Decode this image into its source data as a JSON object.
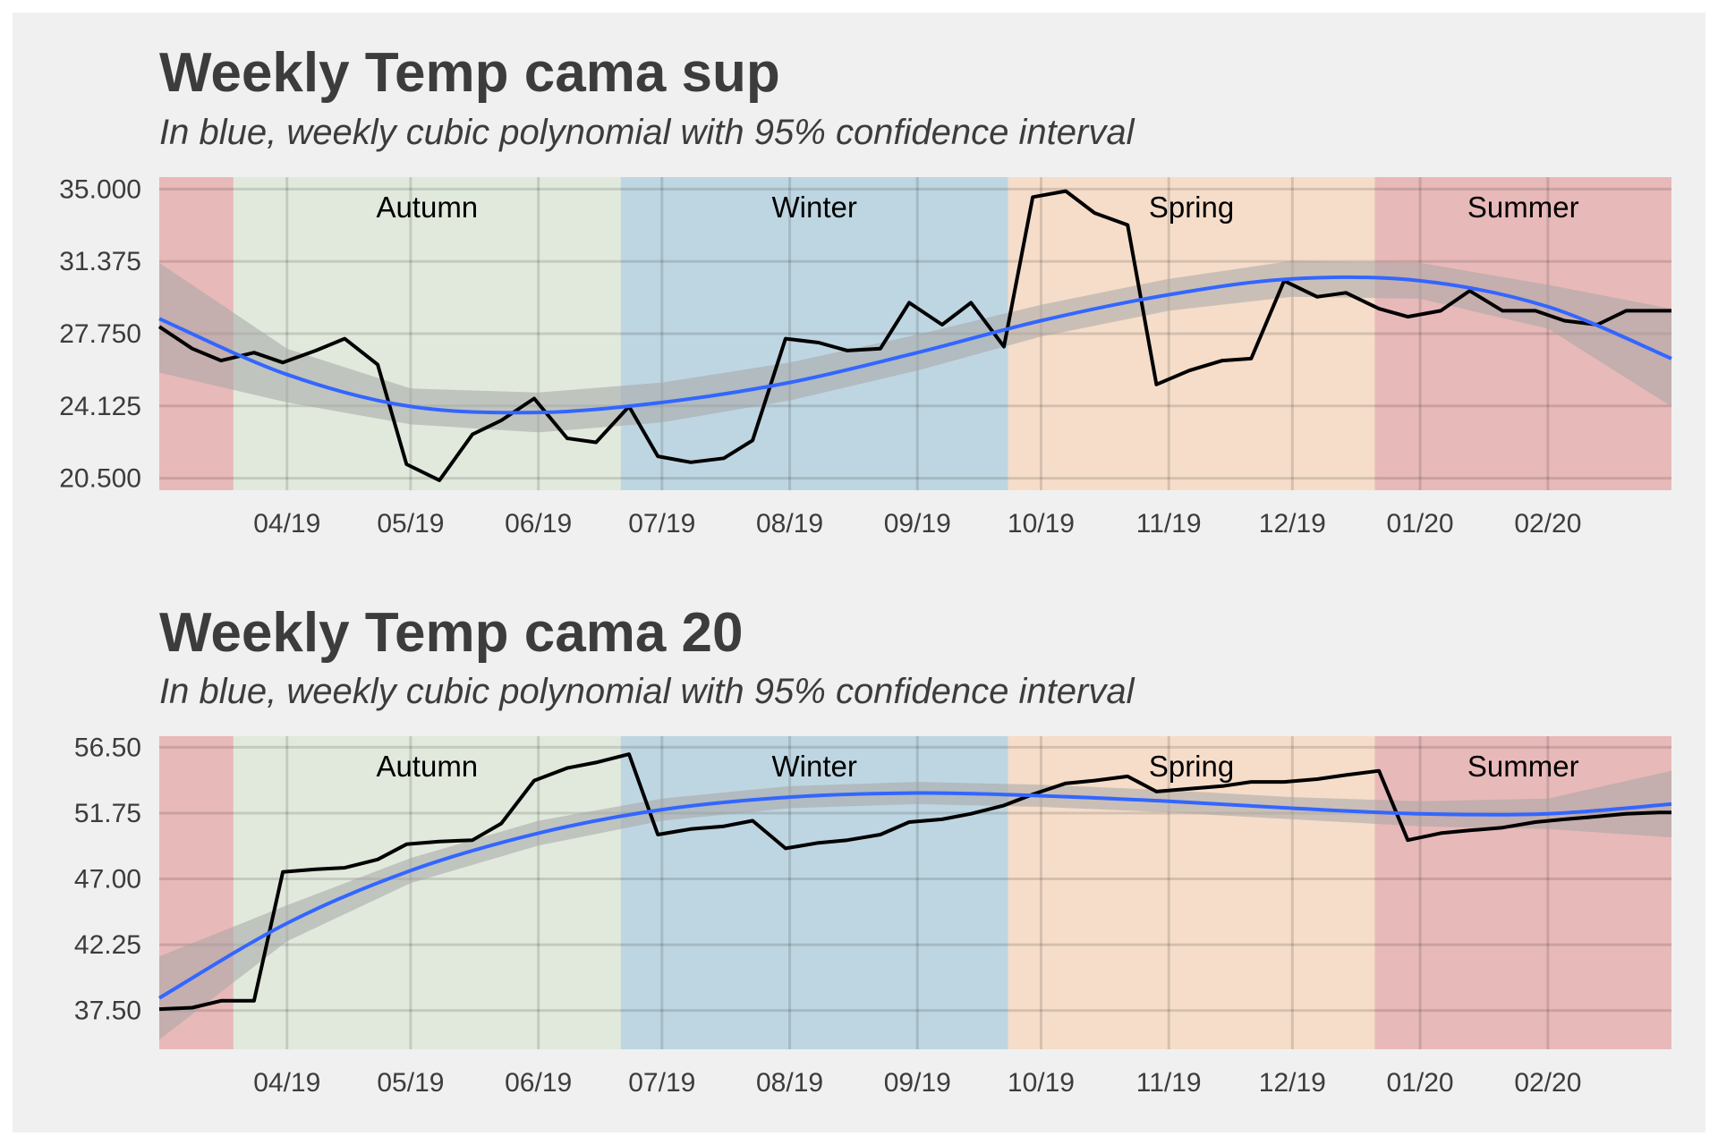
{
  "colors": {
    "background": "#f0f0f0",
    "summer": "#e8b9b9",
    "autumn": "#e1e9dc",
    "winter": "#bed6e1",
    "spring": "#f5ddc9",
    "observed_line": "#000000",
    "fit_line": "#3366ff",
    "confidence_band": "#a6a6a6"
  },
  "chart_data": [
    {
      "type": "line",
      "title": "Weekly Temp cama sup",
      "subtitle": "In blue, weekly cubic polynomial with 95% confidence interval",
      "xlabel": "",
      "ylabel": "",
      "x_range": [
        "2019-03-01",
        "2020-03-02"
      ],
      "ylim": [
        19.9,
        35.6
      ],
      "yticks": [
        20.5,
        24.125,
        27.75,
        31.375,
        35.0
      ],
      "ytick_labels": [
        "20.500",
        "24.125",
        "27.750",
        "31.375",
        "35.000"
      ],
      "xticks": [
        "2019-04-01",
        "2019-05-01",
        "2019-06-01",
        "2019-07-01",
        "2019-08-01",
        "2019-09-01",
        "2019-10-01",
        "2019-11-01",
        "2019-12-01",
        "2020-01-01",
        "2020-02-01"
      ],
      "xtick_labels": [
        "04/19",
        "05/19",
        "06/19",
        "07/19",
        "08/19",
        "09/19",
        "10/19",
        "11/19",
        "12/19",
        "01/20",
        "02/20"
      ],
      "grid": true,
      "seasons": [
        {
          "name": "",
          "key": "summer",
          "start": "2019-03-01",
          "end": "2019-03-19"
        },
        {
          "name": "Autumn",
          "key": "autumn",
          "start": "2019-03-19",
          "end": "2019-06-21"
        },
        {
          "name": "Winter",
          "key": "winter",
          "start": "2019-06-21",
          "end": "2019-09-23"
        },
        {
          "name": "Spring",
          "key": "spring",
          "start": "2019-09-23",
          "end": "2019-12-21"
        },
        {
          "name": "Summer",
          "key": "summer",
          "start": "2019-12-21",
          "end": "2020-03-02"
        }
      ],
      "series": [
        {
          "x": [
            "2019-03-01",
            "2019-03-09",
            "2019-03-16",
            "2019-03-24",
            "2019-03-31",
            "2019-04-08",
            "2019-04-15",
            "2019-04-23",
            "2019-04-30",
            "2019-05-08",
            "2019-05-16",
            "2019-05-23",
            "2019-05-31",
            "2019-06-08",
            "2019-06-15",
            "2019-06-23",
            "2019-06-30",
            "2019-07-08",
            "2019-07-16",
            "2019-07-23",
            "2019-07-31",
            "2019-08-08",
            "2019-08-15",
            "2019-08-23",
            "2019-08-30",
            "2019-09-07",
            "2019-09-14",
            "2019-09-22",
            "2019-09-29",
            "2019-10-07",
            "2019-10-14",
            "2019-10-22",
            "2019-10-29",
            "2019-11-06",
            "2019-11-14",
            "2019-11-21",
            "2019-11-29",
            "2019-12-07",
            "2019-12-14",
            "2019-12-22",
            "2019-12-29",
            "2020-01-06",
            "2020-01-13",
            "2020-01-21",
            "2020-01-29",
            "2020-02-05",
            "2020-02-13",
            "2020-02-20",
            "2020-02-28",
            "2020-03-02"
          ],
          "values": [
            28.1,
            27.0,
            26.4,
            26.8,
            26.3,
            26.9,
            27.5,
            26.2,
            21.2,
            20.4,
            22.7,
            23.4,
            24.5,
            22.5,
            22.3,
            24.1,
            21.6,
            21.3,
            21.5,
            22.4,
            27.5,
            27.3,
            26.9,
            27.0,
            29.3,
            28.2,
            29.3,
            27.1,
            34.6,
            34.9,
            33.8,
            33.2,
            25.2,
            25.9,
            26.4,
            26.5,
            30.4,
            29.6,
            29.8,
            29.0,
            28.6,
            28.9,
            29.9,
            28.9,
            28.9,
            28.4,
            28.2,
            28.9,
            28.9,
            28.9
          ]
        },
        {
          "type": "fit",
          "x": [
            "2019-03-01",
            "2019-04-01",
            "2019-05-01",
            "2019-06-01",
            "2019-07-01",
            "2019-08-01",
            "2019-09-01",
            "2019-10-01",
            "2019-11-01",
            "2019-12-01",
            "2020-01-01",
            "2020-02-01",
            "2020-03-02"
          ],
          "values": [
            28.5,
            25.7,
            24.1,
            23.8,
            24.3,
            25.3,
            26.8,
            28.4,
            29.7,
            30.5,
            30.4,
            29.1,
            26.5
          ],
          "ci_low": [
            25.8,
            24.3,
            23.2,
            22.8,
            23.3,
            24.4,
            25.9,
            27.6,
            28.9,
            29.6,
            29.5,
            28.0,
            24.1
          ],
          "ci_high": [
            31.3,
            27.0,
            25.0,
            24.8,
            25.3,
            26.3,
            27.7,
            29.2,
            30.5,
            31.4,
            31.3,
            30.2,
            29.0
          ]
        }
      ]
    },
    {
      "type": "line",
      "title": "Weekly Temp cama 20",
      "subtitle": "In blue, weekly cubic polynomial with 95% confidence interval",
      "xlabel": "",
      "ylabel": "",
      "x_range": [
        "2019-03-01",
        "2020-03-02"
      ],
      "ylim": [
        34.7,
        57.3
      ],
      "yticks": [
        37.5,
        42.25,
        47.0,
        51.75,
        56.5
      ],
      "ytick_labels": [
        "37.50",
        "42.25",
        "47.00",
        "51.75",
        "56.50"
      ],
      "xticks": [
        "2019-04-01",
        "2019-05-01",
        "2019-06-01",
        "2019-07-01",
        "2019-08-01",
        "2019-09-01",
        "2019-10-01",
        "2019-11-01",
        "2019-12-01",
        "2020-01-01",
        "2020-02-01"
      ],
      "xtick_labels": [
        "04/19",
        "05/19",
        "06/19",
        "07/19",
        "08/19",
        "09/19",
        "10/19",
        "11/19",
        "12/19",
        "01/20",
        "02/20"
      ],
      "grid": true,
      "seasons": [
        {
          "name": "",
          "key": "summer",
          "start": "2019-03-01",
          "end": "2019-03-19"
        },
        {
          "name": "Autumn",
          "key": "autumn",
          "start": "2019-03-19",
          "end": "2019-06-21"
        },
        {
          "name": "Winter",
          "key": "winter",
          "start": "2019-06-21",
          "end": "2019-09-23"
        },
        {
          "name": "Spring",
          "key": "spring",
          "start": "2019-09-23",
          "end": "2019-12-21"
        },
        {
          "name": "Summer",
          "key": "summer",
          "start": "2019-12-21",
          "end": "2020-03-02"
        }
      ],
      "series": [
        {
          "x": [
            "2019-03-01",
            "2019-03-09",
            "2019-03-16",
            "2019-03-24",
            "2019-03-31",
            "2019-04-08",
            "2019-04-15",
            "2019-04-23",
            "2019-04-30",
            "2019-05-08",
            "2019-05-16",
            "2019-05-23",
            "2019-05-31",
            "2019-06-08",
            "2019-06-15",
            "2019-06-23",
            "2019-06-30",
            "2019-07-08",
            "2019-07-16",
            "2019-07-23",
            "2019-07-31",
            "2019-08-08",
            "2019-08-15",
            "2019-08-23",
            "2019-08-30",
            "2019-09-07",
            "2019-09-14",
            "2019-09-22",
            "2019-09-29",
            "2019-10-07",
            "2019-10-14",
            "2019-10-22",
            "2019-10-29",
            "2019-11-06",
            "2019-11-14",
            "2019-11-21",
            "2019-11-29",
            "2019-12-07",
            "2019-12-14",
            "2019-12-22",
            "2019-12-29",
            "2020-01-06",
            "2020-01-13",
            "2020-01-21",
            "2020-01-29",
            "2020-02-05",
            "2020-02-13",
            "2020-02-20",
            "2020-02-28",
            "2020-03-02"
          ],
          "values": [
            37.6,
            37.7,
            38.2,
            38.2,
            47.5,
            47.7,
            47.8,
            48.4,
            49.5,
            49.7,
            49.8,
            51.0,
            54.1,
            55.0,
            55.4,
            56.0,
            50.2,
            50.6,
            50.8,
            51.2,
            49.2,
            49.6,
            49.8,
            50.2,
            51.1,
            51.3,
            51.7,
            52.3,
            53.1,
            53.9,
            54.1,
            54.4,
            53.3,
            53.5,
            53.7,
            54.0,
            54.0,
            54.2,
            54.5,
            54.8,
            49.8,
            50.3,
            50.5,
            50.7,
            51.1,
            51.3,
            51.5,
            51.7,
            51.8,
            51.8
          ]
        },
        {
          "type": "fit",
          "x": [
            "2019-03-01",
            "2019-04-01",
            "2019-05-01",
            "2019-06-01",
            "2019-07-01",
            "2019-08-01",
            "2019-09-01",
            "2019-10-01",
            "2019-11-01",
            "2019-12-01",
            "2020-01-01",
            "2020-02-01",
            "2020-03-02"
          ],
          "values": [
            38.4,
            43.8,
            47.6,
            50.3,
            52.0,
            52.9,
            53.2,
            53.0,
            52.6,
            52.1,
            51.7,
            51.7,
            52.4
          ],
          "ci_low": [
            35.4,
            42.5,
            46.7,
            49.4,
            51.2,
            52.1,
            52.4,
            52.2,
            51.8,
            51.3,
            50.8,
            50.6,
            50.0
          ],
          "ci_high": [
            41.4,
            45.1,
            48.5,
            51.2,
            52.8,
            53.7,
            54.0,
            53.8,
            53.4,
            52.9,
            52.6,
            52.8,
            54.8
          ]
        }
      ]
    }
  ]
}
